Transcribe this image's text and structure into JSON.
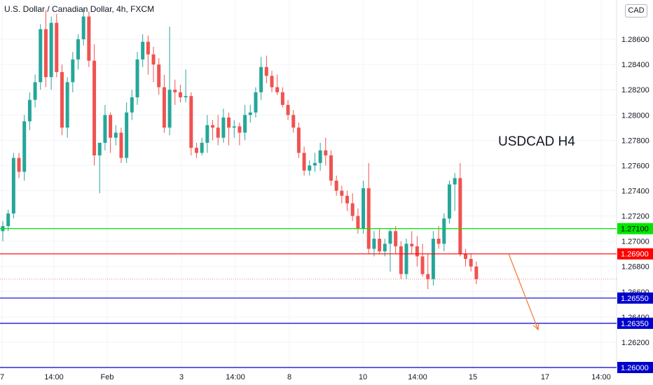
{
  "header": {
    "title": "U.S. Dollar / Canadian Dollar, 4h, FXCM",
    "currency_badge": "CAD"
  },
  "annotation": {
    "title": "USDCAD H4"
  },
  "colors": {
    "up": "#26a69a",
    "down": "#ef5350",
    "support_green": "#00e600",
    "resistance_red": "#ff0000",
    "target_blue": "#0000cc",
    "arrow": "#f57c3a",
    "grid": "#f0f3fa",
    "axis_text": "#131722"
  },
  "chart_data": {
    "type": "candlestick",
    "symbol": "USDCAD",
    "timeframe": "4h",
    "y_axis": {
      "min": 1.26,
      "max": 1.288,
      "ticks": [
        "1.28600",
        "1.28400",
        "1.28200",
        "1.28000",
        "1.27800",
        "1.27600",
        "1.27400",
        "1.27200",
        "1.27000",
        "1.26800",
        "1.26600",
        "1.26400",
        "1.26200"
      ]
    },
    "x_axis": {
      "labels": [
        "7",
        "14:00",
        "Feb",
        "3",
        "14:00",
        "8",
        "10",
        "14:00",
        "15",
        "17",
        "14:00"
      ]
    },
    "levels": [
      {
        "value": 1.271,
        "label": "1.27100",
        "color": "#00e600"
      },
      {
        "value": 1.269,
        "label": "1.26900",
        "color": "#ff0000"
      },
      {
        "value": 1.2655,
        "label": "1.26550",
        "color": "#0000cc"
      },
      {
        "value": 1.2635,
        "label": "1.26350",
        "color": "#0000cc"
      },
      {
        "value": 1.26,
        "label": "1.26000",
        "color": "#0000cc"
      }
    ],
    "projection": {
      "from": 1.269,
      "to": 1.263
    },
    "candles": [
      [
        1.2708,
        1.2716,
        1.27,
        1.2712
      ],
      [
        1.2712,
        1.2725,
        1.2708,
        1.2722
      ],
      [
        1.2722,
        1.277,
        1.2718,
        1.2766
      ],
      [
        1.2766,
        1.277,
        1.275,
        1.2755
      ],
      [
        1.2755,
        1.28,
        1.2748,
        1.2795
      ],
      [
        1.2795,
        1.2818,
        1.2788,
        1.2812
      ],
      [
        1.2812,
        1.2832,
        1.2806,
        1.2826
      ],
      [
        1.2826,
        1.2872,
        1.282,
        1.2868
      ],
      [
        1.2868,
        1.2883,
        1.2822,
        1.283
      ],
      [
        1.283,
        1.2878,
        1.282,
        1.2873
      ],
      [
        1.2873,
        1.288,
        1.283,
        1.2834
      ],
      [
        1.2834,
        1.284,
        1.2784,
        1.279
      ],
      [
        1.279,
        1.283,
        1.2782,
        1.2826
      ],
      [
        1.2826,
        1.285,
        1.2818,
        1.2844
      ],
      [
        1.2844,
        1.2864,
        1.2836,
        1.286
      ],
      [
        1.286,
        1.2884,
        1.2855,
        1.2878
      ],
      [
        1.2878,
        1.2882,
        1.2838,
        1.2843
      ],
      [
        1.2843,
        1.2856,
        1.276,
        1.2768
      ],
      [
        1.2768,
        1.2778,
        1.2738,
        1.2778
      ],
      [
        1.2778,
        1.2808,
        1.2772,
        1.28
      ],
      [
        1.28,
        1.2802,
        1.277,
        1.2782
      ],
      [
        1.2782,
        1.2792,
        1.2776,
        1.2786
      ],
      [
        1.2786,
        1.279,
        1.2762,
        1.2766
      ],
      [
        1.2766,
        1.281,
        1.2762,
        1.2802
      ],
      [
        1.2802,
        1.282,
        1.2796,
        1.2814
      ],
      [
        1.2814,
        1.285,
        1.2808,
        1.2844
      ],
      [
        1.2844,
        1.2864,
        1.2838,
        1.2858
      ],
      [
        1.2858,
        1.2863,
        1.2832,
        1.2848
      ],
      [
        1.2848,
        1.2854,
        1.2826,
        1.284
      ],
      [
        1.284,
        1.2845,
        1.2816,
        1.2822
      ],
      [
        1.2822,
        1.2832,
        1.2786,
        1.279
      ],
      [
        1.279,
        1.287,
        1.2784,
        1.282
      ],
      [
        1.282,
        1.2828,
        1.2808,
        1.2818
      ],
      [
        1.2818,
        1.2824,
        1.281,
        1.2814
      ],
      [
        1.2814,
        1.2836,
        1.281,
        1.2815
      ],
      [
        1.2815,
        1.2818,
        1.2768,
        1.2774
      ],
      [
        1.2774,
        1.2778,
        1.2766,
        1.277
      ],
      [
        1.277,
        1.2782,
        1.2768,
        1.2778
      ],
      [
        1.2778,
        1.28,
        1.277,
        1.2792
      ],
      [
        1.2792,
        1.2796,
        1.278,
        1.279
      ],
      [
        1.279,
        1.28,
        1.2776,
        1.2782
      ],
      [
        1.2782,
        1.2805,
        1.2778,
        1.2798
      ],
      [
        1.2798,
        1.2802,
        1.2776,
        1.279
      ],
      [
        1.279,
        1.2796,
        1.2782,
        1.2791
      ],
      [
        1.2791,
        1.2794,
        1.2776,
        1.2786
      ],
      [
        1.2786,
        1.2808,
        1.278,
        1.28
      ],
      [
        1.28,
        1.2808,
        1.2794,
        1.2802
      ],
      [
        1.2802,
        1.2822,
        1.2798,
        1.2818
      ],
      [
        1.2818,
        1.2846,
        1.2812,
        1.2838
      ],
      [
        1.2838,
        1.2847,
        1.2825,
        1.2831
      ],
      [
        1.2831,
        1.2835,
        1.2818,
        1.2822
      ],
      [
        1.2822,
        1.2832,
        1.2816,
        1.2818
      ],
      [
        1.2818,
        1.2822,
        1.2806,
        1.2808
      ],
      [
        1.2808,
        1.2812,
        1.2796,
        1.28
      ],
      [
        1.28,
        1.2804,
        1.2786,
        1.279
      ],
      [
        1.279,
        1.2794,
        1.2766,
        1.277
      ],
      [
        1.277,
        1.2775,
        1.2752,
        1.2756
      ],
      [
        1.2756,
        1.2764,
        1.2752,
        1.276
      ],
      [
        1.276,
        1.277,
        1.2755,
        1.2762
      ],
      [
        1.2762,
        1.2778,
        1.2756,
        1.2772
      ],
      [
        1.2772,
        1.2782,
        1.276,
        1.2768
      ],
      [
        1.2768,
        1.2772,
        1.2744,
        1.2748
      ],
      [
        1.2748,
        1.2752,
        1.2736,
        1.274
      ],
      [
        1.274,
        1.2744,
        1.273,
        1.2736
      ],
      [
        1.2736,
        1.274,
        1.2724,
        1.273
      ],
      [
        1.273,
        1.2738,
        1.2716,
        1.272
      ],
      [
        1.272,
        1.2726,
        1.2706,
        1.271
      ],
      [
        1.271,
        1.2748,
        1.2706,
        1.2742
      ],
      [
        1.2742,
        1.2762,
        1.269,
        1.2694
      ],
      [
        1.2694,
        1.2708,
        1.2688,
        1.2702
      ],
      [
        1.2702,
        1.271,
        1.269,
        1.2692
      ],
      [
        1.2692,
        1.2702,
        1.2688,
        1.2698
      ],
      [
        1.2698,
        1.271,
        1.2676,
        1.2708
      ],
      [
        1.2708,
        1.2712,
        1.269,
        1.2696
      ],
      [
        1.2696,
        1.27,
        1.267,
        1.2674
      ],
      [
        1.2674,
        1.2702,
        1.267,
        1.2698
      ],
      [
        1.2698,
        1.2708,
        1.269,
        1.2696
      ],
      [
        1.2696,
        1.2704,
        1.268,
        1.2688
      ],
      [
        1.2688,
        1.2698,
        1.2672,
        1.2674
      ],
      [
        1.2674,
        1.269,
        1.2662,
        1.267
      ],
      [
        1.267,
        1.2708,
        1.2665,
        1.2702
      ],
      [
        1.2702,
        1.2712,
        1.2694,
        1.2698
      ],
      [
        1.2698,
        1.2722,
        1.2692,
        1.2718
      ],
      [
        1.2718,
        1.2748,
        1.2714,
        1.2745
      ],
      [
        1.2745,
        1.2754,
        1.2724,
        1.275
      ],
      [
        1.275,
        1.2762,
        1.2688,
        1.269
      ],
      [
        1.269,
        1.2694,
        1.268,
        1.2686
      ],
      [
        1.2686,
        1.269,
        1.2676,
        1.268
      ],
      [
        1.268,
        1.2684,
        1.2666,
        1.267
      ]
    ]
  }
}
